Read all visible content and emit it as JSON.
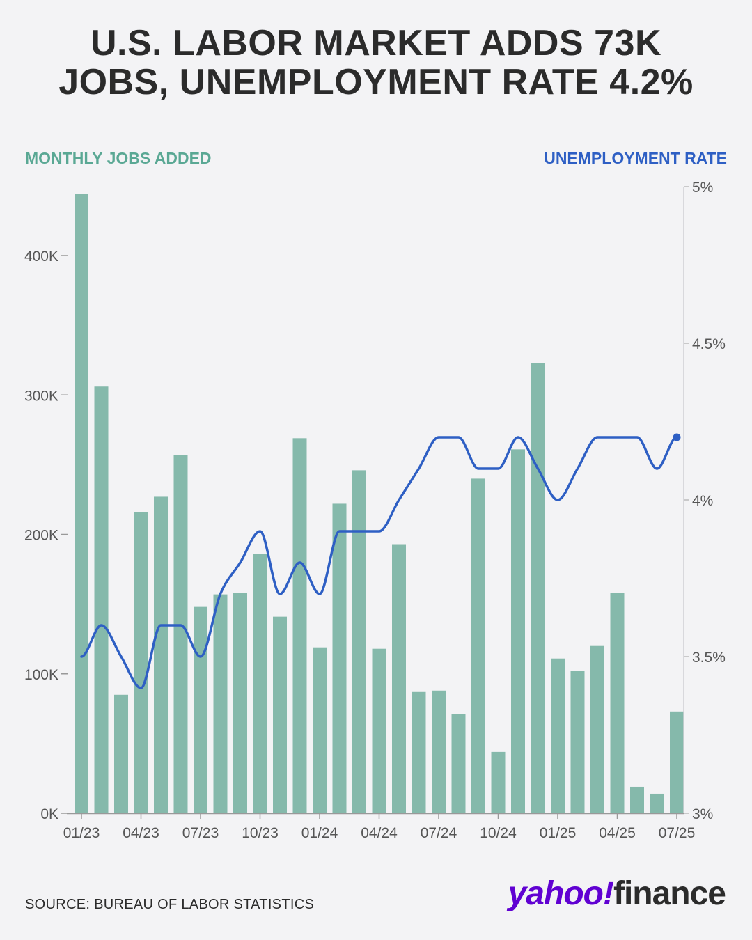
{
  "header": {
    "title_line1": "U.S. LABOR MARKET ADDS 73K",
    "title_line2": "JOBS, UNEMPLOYMENT RATE 4.2%"
  },
  "footer": {
    "source": "SOURCE: BUREAU OF LABOR STATISTICS",
    "logo_yahoo": "yahoo!",
    "logo_finance": "finance"
  },
  "colors": {
    "bars": "#85b9ab",
    "line": "#2e5fc4",
    "left_axis_title": "#5aa894",
    "right_axis_title": "#2e5fc4"
  },
  "chart_data": {
    "type": "bar",
    "left_axis": {
      "title": "MONTHLY JOBS ADDED",
      "ylim": [
        0,
        450000
      ],
      "ticks": [
        0,
        100000,
        200000,
        300000,
        400000
      ],
      "tick_labels": [
        "0K",
        "100K",
        "200K",
        "300K",
        "400K"
      ]
    },
    "right_axis": {
      "title": "UNEMPLOYMENT RATE",
      "ylim": [
        3,
        5
      ],
      "ticks": [
        3,
        3.5,
        4,
        4.5,
        5
      ],
      "tick_labels": [
        "3%",
        "3.5%",
        "4%",
        "4.5%",
        "5%"
      ]
    },
    "x_tick_labels": [
      "01/23",
      "04/23",
      "07/23",
      "10/23",
      "01/24",
      "04/24",
      "07/24",
      "10/24",
      "01/25",
      "04/25",
      "07/25"
    ],
    "x_tick_every": 3,
    "categories": [
      "01/23",
      "02/23",
      "03/23",
      "04/23",
      "05/23",
      "06/23",
      "07/23",
      "08/23",
      "09/23",
      "10/23",
      "11/23",
      "12/23",
      "01/24",
      "02/24",
      "03/24",
      "04/24",
      "05/24",
      "06/24",
      "07/24",
      "08/24",
      "09/24",
      "10/24",
      "11/24",
      "12/24",
      "01/25",
      "02/25",
      "03/25",
      "04/25",
      "05/25",
      "06/25",
      "07/25"
    ],
    "series": [
      {
        "name": "MONTHLY JOBS ADDED",
        "type": "bar",
        "axis": "left",
        "values": [
          444000,
          306000,
          85000,
          216000,
          227000,
          257000,
          148000,
          157000,
          158000,
          186000,
          141000,
          269000,
          119000,
          222000,
          246000,
          118000,
          193000,
          87000,
          88000,
          71000,
          240000,
          44000,
          261000,
          323000,
          111000,
          102000,
          120000,
          158000,
          19000,
          14000,
          73000
        ]
      },
      {
        "name": "UNEMPLOYMENT RATE",
        "type": "line",
        "axis": "right",
        "values": [
          3.5,
          3.6,
          3.5,
          3.4,
          3.6,
          3.6,
          3.5,
          3.7,
          3.8,
          3.9,
          3.7,
          3.8,
          3.7,
          3.9,
          3.9,
          3.9,
          4.0,
          4.1,
          4.2,
          4.2,
          4.1,
          4.1,
          4.2,
          4.1,
          4.0,
          4.1,
          4.2,
          4.2,
          4.2,
          4.1,
          4.2
        ]
      }
    ],
    "grid": false
  }
}
